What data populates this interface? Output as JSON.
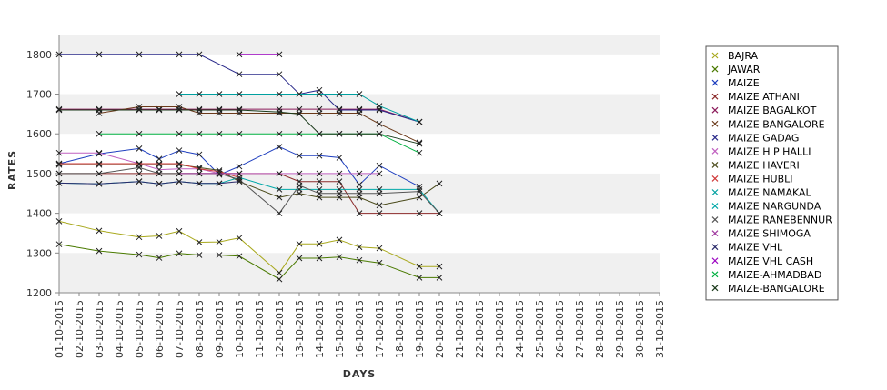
{
  "chart_data": {
    "type": "line",
    "xlabel": "DAYS",
    "ylabel": "RATES",
    "ylim": [
      1200,
      1850
    ],
    "yticks": [
      1200,
      1300,
      1400,
      1500,
      1600,
      1700,
      1800
    ],
    "grid": "alternating horizontal bands",
    "legend_position": "right",
    "categories": [
      "01-10-2015",
      "02-10-2015",
      "03-10-2015",
      "04-10-2015",
      "05-10-2015",
      "06-10-2015",
      "07-10-2015",
      "08-10-2015",
      "09-10-2015",
      "10-10-2015",
      "11-10-2015",
      "12-10-2015",
      "13-10-2015",
      "14-10-2015",
      "15-10-2015",
      "16-10-2015",
      "17-10-2015",
      "18-10-2015",
      "19-10-2015",
      "20-10-2015",
      "21-10-2015",
      "22-10-2015",
      "23-10-2015",
      "24-10-2015",
      "25-10-2015",
      "26-10-2015",
      "27-10-2015",
      "28-10-2015",
      "29-10-2015",
      "30-10-2015",
      "31-10-2015"
    ],
    "series": [
      {
        "name": "BAJRA",
        "color": "#a8a81c",
        "points": [
          [
            0,
            1380
          ],
          [
            2,
            1356
          ],
          [
            4,
            1340
          ],
          [
            5,
            1343
          ],
          [
            6,
            1355
          ],
          [
            7,
            1327
          ],
          [
            8,
            1328
          ],
          [
            9,
            1338
          ],
          [
            11,
            1250
          ],
          [
            12,
            1323
          ],
          [
            13,
            1323
          ],
          [
            14,
            1333
          ],
          [
            15,
            1315
          ],
          [
            16,
            1312
          ],
          [
            18,
            1266
          ],
          [
            19,
            1266
          ]
        ]
      },
      {
        "name": "JAWAR",
        "color": "#4a7a00",
        "points": [
          [
            0,
            1322
          ],
          [
            2,
            1305
          ],
          [
            4,
            1296
          ],
          [
            5,
            1288
          ],
          [
            6,
            1299
          ],
          [
            7,
            1295
          ],
          [
            8,
            1295
          ],
          [
            9,
            1292
          ],
          [
            11,
            1234
          ],
          [
            12,
            1287
          ],
          [
            13,
            1287
          ],
          [
            14,
            1290
          ],
          [
            15,
            1282
          ],
          [
            16,
            1275
          ],
          [
            18,
            1238
          ],
          [
            19,
            1238
          ]
        ]
      },
      {
        "name": "MAIZE",
        "color": "#1f3fbf",
        "points": [
          [
            0,
            1525
          ],
          [
            2,
            1550
          ],
          [
            4,
            1563
          ],
          [
            5,
            1537
          ],
          [
            6,
            1558
          ],
          [
            7,
            1548
          ],
          [
            8,
            1497
          ],
          [
            9,
            1518
          ],
          [
            11,
            1567
          ],
          [
            12,
            1545
          ],
          [
            13,
            1545
          ],
          [
            14,
            1540
          ],
          [
            15,
            1472
          ],
          [
            16,
            1520
          ],
          [
            18,
            1467
          ]
        ]
      },
      {
        "name": "MAIZE ATHANI",
        "color": "#8b2a2a",
        "points": [
          [
            0,
            1500
          ],
          [
            2,
            1500
          ],
          [
            4,
            1500
          ],
          [
            5,
            1500
          ],
          [
            6,
            1500
          ],
          [
            7,
            1500
          ],
          [
            8,
            1500
          ],
          [
            9,
            1500
          ],
          [
            11,
            1500
          ],
          [
            12,
            1480
          ],
          [
            13,
            1480
          ],
          [
            14,
            1480
          ],
          [
            15,
            1400
          ],
          [
            16,
            1400
          ],
          [
            18,
            1400
          ],
          [
            19,
            1400
          ]
        ]
      },
      {
        "name": "MAIZE BAGALKOT",
        "color": "#8b1a5a",
        "points": [
          [
            0,
            1662
          ],
          [
            2,
            1662
          ],
          [
            4,
            1662
          ],
          [
            5,
            1662
          ],
          [
            6,
            1662
          ],
          [
            7,
            1662
          ],
          [
            8,
            1662
          ],
          [
            9,
            1662
          ],
          [
            11,
            1662
          ],
          [
            12,
            1662
          ],
          [
            13,
            1662
          ],
          [
            14,
            1662
          ],
          [
            15,
            1662
          ],
          [
            16,
            1662
          ],
          [
            18,
            1630
          ]
        ]
      },
      {
        "name": "MAIZE BANGALORE",
        "color": "#6b3a1a",
        "points": [
          [
            2,
            1652
          ],
          [
            4,
            1668
          ],
          [
            6,
            1668
          ],
          [
            7,
            1652
          ],
          [
            8,
            1652
          ],
          [
            9,
            1652
          ],
          [
            11,
            1652
          ],
          [
            12,
            1652
          ],
          [
            13,
            1652
          ],
          [
            14,
            1652
          ],
          [
            15,
            1652
          ],
          [
            16,
            1625
          ],
          [
            18,
            1578
          ]
        ]
      },
      {
        "name": "MAIZE GADAG",
        "color": "#2a2a8a",
        "points": [
          [
            0,
            1800
          ],
          [
            2,
            1800
          ],
          [
            4,
            1800
          ],
          [
            6,
            1800
          ],
          [
            7,
            1800
          ],
          [
            9,
            1750
          ],
          [
            11,
            1750
          ],
          [
            12,
            1700
          ],
          [
            13,
            1710
          ],
          [
            14,
            1660
          ],
          [
            15,
            1660
          ],
          [
            16,
            1660
          ],
          [
            18,
            1630
          ]
        ]
      },
      {
        "name": "MAIZE H P HALLI",
        "color": "#c060c0",
        "points": [
          [
            0,
            1552
          ],
          [
            2,
            1552
          ],
          [
            4,
            1525
          ],
          [
            5,
            1510
          ],
          [
            6,
            1512
          ],
          [
            7,
            1512
          ],
          [
            8,
            1500
          ],
          [
            9,
            1500
          ],
          [
            11,
            1500
          ],
          [
            12,
            1500
          ],
          [
            13,
            1500
          ],
          [
            14,
            1500
          ],
          [
            15,
            1500
          ],
          [
            16,
            1500
          ]
        ]
      },
      {
        "name": "MAIZE HAVERI",
        "color": "#4a4a1a",
        "points": [
          [
            0,
            1522
          ],
          [
            2,
            1522
          ],
          [
            4,
            1522
          ],
          [
            5,
            1522
          ],
          [
            6,
            1522
          ],
          [
            7,
            1515
          ],
          [
            8,
            1508
          ],
          [
            9,
            1480
          ],
          [
            11,
            1440
          ],
          [
            12,
            1450
          ],
          [
            13,
            1440
          ],
          [
            14,
            1440
          ],
          [
            15,
            1440
          ],
          [
            16,
            1420
          ],
          [
            18,
            1440
          ],
          [
            19,
            1475
          ]
        ]
      },
      {
        "name": "MAIZE HUBLI",
        "color": "#d03a3a",
        "points": [
          [
            0,
            1525
          ],
          [
            2,
            1525
          ],
          [
            4,
            1525
          ],
          [
            5,
            1525
          ],
          [
            6,
            1525
          ],
          [
            7,
            1512
          ],
          [
            8,
            1505
          ],
          [
            9,
            1490
          ]
        ]
      },
      {
        "name": "MAIZE NAMAKAL",
        "color": "#00a0a0",
        "points": [
          [
            6,
            1700
          ],
          [
            7,
            1700
          ],
          [
            8,
            1700
          ],
          [
            9,
            1700
          ],
          [
            11,
            1700
          ],
          [
            12,
            1700
          ],
          [
            13,
            1700
          ],
          [
            14,
            1700
          ],
          [
            15,
            1700
          ],
          [
            16,
            1670
          ],
          [
            18,
            1630
          ]
        ]
      },
      {
        "name": "MAIZE NARGUNDA",
        "color": "#00a8a8",
        "points": [
          [
            0,
            1476
          ],
          [
            2,
            1474
          ],
          [
            4,
            1480
          ],
          [
            5,
            1474
          ],
          [
            6,
            1480
          ],
          [
            7,
            1475
          ],
          [
            8,
            1475
          ],
          [
            9,
            1490
          ],
          [
            11,
            1460
          ],
          [
            12,
            1460
          ],
          [
            13,
            1460
          ],
          [
            14,
            1460
          ],
          [
            15,
            1460
          ],
          [
            16,
            1460
          ],
          [
            18,
            1460
          ],
          [
            19,
            1400
          ]
        ]
      },
      {
        "name": "MAIZE RANEBENNUR",
        "color": "#555555",
        "points": [
          [
            0,
            1500
          ],
          [
            2,
            1500
          ],
          [
            4,
            1515
          ],
          [
            5,
            1500
          ],
          [
            6,
            1500
          ],
          [
            7,
            1500
          ],
          [
            8,
            1500
          ],
          [
            9,
            1485
          ],
          [
            11,
            1400
          ],
          [
            12,
            1470
          ],
          [
            13,
            1450
          ],
          [
            14,
            1450
          ],
          [
            15,
            1450
          ],
          [
            16,
            1450
          ],
          [
            18,
            1455
          ],
          [
            19,
            1400
          ]
        ]
      },
      {
        "name": "MAIZE SHIMOGA",
        "color": "#a03aa0",
        "points": [
          [
            6,
            1500
          ],
          [
            7,
            1500
          ],
          [
            8,
            1500
          ],
          [
            9,
            1500
          ]
        ]
      },
      {
        "name": "MAIZE VHL",
        "color": "#2a2a6a",
        "points": [
          [
            0,
            1476
          ],
          [
            2,
            1474
          ],
          [
            4,
            1480
          ],
          [
            5,
            1474
          ],
          [
            6,
            1480
          ],
          [
            7,
            1475
          ],
          [
            8,
            1475
          ],
          [
            9,
            1480
          ]
        ]
      },
      {
        "name": "MAIZE VHL CASH",
        "color": "#9a00c0",
        "points": [
          [
            9,
            1800
          ],
          [
            11,
            1800
          ]
        ]
      },
      {
        "name": "MAIZE-AHMADBAD",
        "color": "#00b040",
        "points": [
          [
            2,
            1600
          ],
          [
            4,
            1600
          ],
          [
            6,
            1600
          ],
          [
            7,
            1600
          ],
          [
            8,
            1600
          ],
          [
            9,
            1600
          ],
          [
            11,
            1600
          ],
          [
            12,
            1600
          ],
          [
            13,
            1600
          ],
          [
            14,
            1600
          ],
          [
            15,
            1600
          ],
          [
            16,
            1600
          ],
          [
            18,
            1552
          ]
        ]
      },
      {
        "name": "MAIZE-BANGALORE",
        "color": "#1a3a1a",
        "points": [
          [
            0,
            1660
          ],
          [
            2,
            1660
          ],
          [
            4,
            1660
          ],
          [
            5,
            1660
          ],
          [
            6,
            1660
          ],
          [
            7,
            1660
          ],
          [
            8,
            1660
          ],
          [
            9,
            1660
          ],
          [
            11,
            1655
          ],
          [
            12,
            1650
          ],
          [
            13,
            1600
          ],
          [
            14,
            1600
          ],
          [
            15,
            1600
          ],
          [
            16,
            1600
          ],
          [
            18,
            1575
          ]
        ]
      }
    ]
  }
}
